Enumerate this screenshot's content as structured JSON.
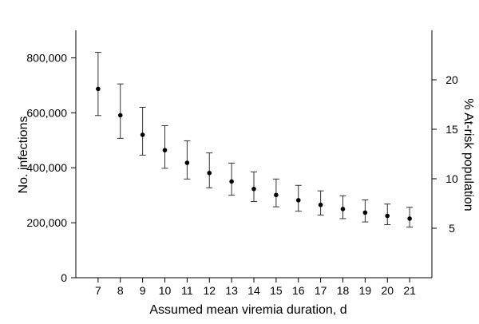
{
  "chart_data": {
    "type": "scatter",
    "title": "",
    "xlabel": "Assumed mean viremia duration, d",
    "ylabel": "No. infections",
    "ylabel_right": "% At-risk population",
    "x": [
      7,
      8,
      9,
      10,
      11,
      12,
      13,
      14,
      15,
      16,
      17,
      18,
      19,
      20,
      21
    ],
    "xlim": [
      6,
      22
    ],
    "ylim": [
      0,
      900000
    ],
    "ylim_right": [
      0,
      25
    ],
    "y_ticks": [
      0,
      200000,
      400000,
      600000,
      800000
    ],
    "y_tick_labels": [
      "0",
      "200,000",
      "400,000",
      "600,000",
      "800,000"
    ],
    "y_right_ticks": [
      5,
      10,
      15,
      20
    ],
    "y_right_tick_labels": [
      "5",
      "10",
      "15",
      "20"
    ],
    "series": [
      {
        "values": [
          687000,
          591000,
          520000,
          464000,
          418000,
          381000,
          350000,
          323000,
          301000,
          282000,
          265000,
          250000,
          237000,
          225000,
          215000
        ],
        "lower": [
          590000,
          507000,
          446000,
          398000,
          359000,
          327000,
          300000,
          277000,
          258000,
          242000,
          228000,
          215000,
          203000,
          193000,
          184000
        ],
        "upper": [
          820000,
          705000,
          620000,
          553000,
          498000,
          454000,
          417000,
          385000,
          359000,
          336000,
          316000,
          298000,
          283000,
          268000,
          256000
        ]
      }
    ],
    "grid": false,
    "legend": "none"
  }
}
